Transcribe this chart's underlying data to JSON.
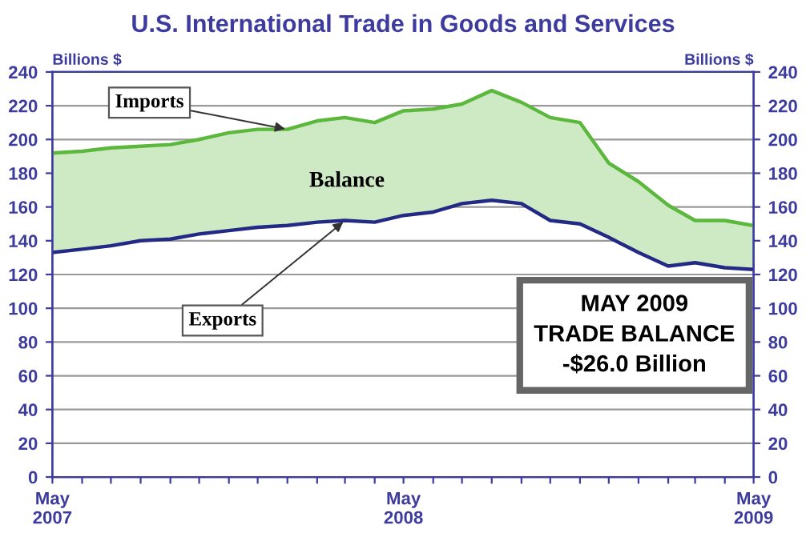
{
  "chart_data": {
    "type": "line",
    "title": "U.S. International Trade in Goods and Services",
    "ylabel": "Billions $",
    "y2label": "Billions $",
    "x": [
      "2007-05",
      "2007-06",
      "2007-07",
      "2007-08",
      "2007-09",
      "2007-10",
      "2007-11",
      "2007-12",
      "2008-01",
      "2008-02",
      "2008-03",
      "2008-04",
      "2008-05",
      "2008-06",
      "2008-07",
      "2008-08",
      "2008-09",
      "2008-10",
      "2008-11",
      "2008-12",
      "2009-01",
      "2009-02",
      "2009-03",
      "2009-04",
      "2009-05"
    ],
    "series": [
      {
        "type": "area",
        "color": "#5cb83c",
        "values": [
          192,
          193,
          195,
          196,
          197,
          200,
          204,
          206,
          206,
          211,
          213,
          210,
          217,
          218,
          221,
          229,
          222,
          213,
          210,
          186,
          175,
          161,
          152,
          152,
          149
        ]
      },
      {
        "color": "#232a86",
        "values": [
          133,
          135,
          137,
          140,
          141,
          144,
          146,
          148,
          149,
          151,
          152,
          151,
          155,
          157,
          162,
          164,
          162,
          152,
          150,
          142,
          133,
          125,
          127,
          124,
          123
        ]
      }
    ],
    "annotations": [
      {
        "text": "Imports",
        "x": "2008-01",
        "y": 206
      },
      {
        "text": "Exports",
        "x": "2008-03",
        "y": 152
      },
      "Balance",
      "MAY 2009\nTRADE BALANCE\n-$26.0 Billion"
    ],
    "xlim": [
      "2007-05",
      "2009-05"
    ],
    "xticks": [
      {
        "value": "2007-05",
        "label": "May\n2007"
      },
      {
        "value": "2007-06",
        "label": null
      },
      {
        "value": "2007-07",
        "label": null
      },
      {
        "value": "2007-08",
        "label": null
      },
      {
        "value": "2007-09",
        "label": null
      },
      {
        "value": "2007-10",
        "label": null
      },
      {
        "value": "2007-11",
        "label": null
      },
      {
        "value": "2007-12",
        "label": null
      },
      {
        "value": "2008-01",
        "label": null
      },
      {
        "value": "2008-02",
        "label": null
      },
      {
        "value": "2008-03",
        "label": null
      },
      {
        "value": "2008-04",
        "label": null
      },
      {
        "value": "2008-05",
        "label": "May\n2008"
      },
      {
        "value": "2008-06",
        "label": null
      },
      {
        "value": "2008-07",
        "label": null
      },
      {
        "value": "2008-08",
        "label": null
      },
      {
        "value": "2008-09",
        "label": null
      },
      {
        "value": "2008-10",
        "label": null
      },
      {
        "value": "2008-11",
        "label": null
      },
      {
        "value": "2008-12",
        "label": null
      },
      {
        "value": "2009-01",
        "label": null
      },
      {
        "value": "2009-02",
        "label": null
      },
      {
        "value": "2009-03",
        "label": null
      },
      {
        "value": "2009-04",
        "label": null
      },
      {
        "value": "2009-05",
        "label": "May\n2009"
      }
    ],
    "ylim": [
      0,
      240
    ],
    "yticks": [
      0,
      20,
      40,
      60,
      80,
      100,
      120,
      140,
      160,
      180,
      200,
      220,
      240
    ],
    "y2lim": [
      0,
      240
    ],
    "y2ticks": [
      0,
      20,
      40,
      60,
      80,
      100,
      120,
      140,
      160,
      180,
      200,
      220,
      240
    ],
    "grid": "y",
    "marker": "none",
    "line_style": "solid",
    "legend": false
  }
}
